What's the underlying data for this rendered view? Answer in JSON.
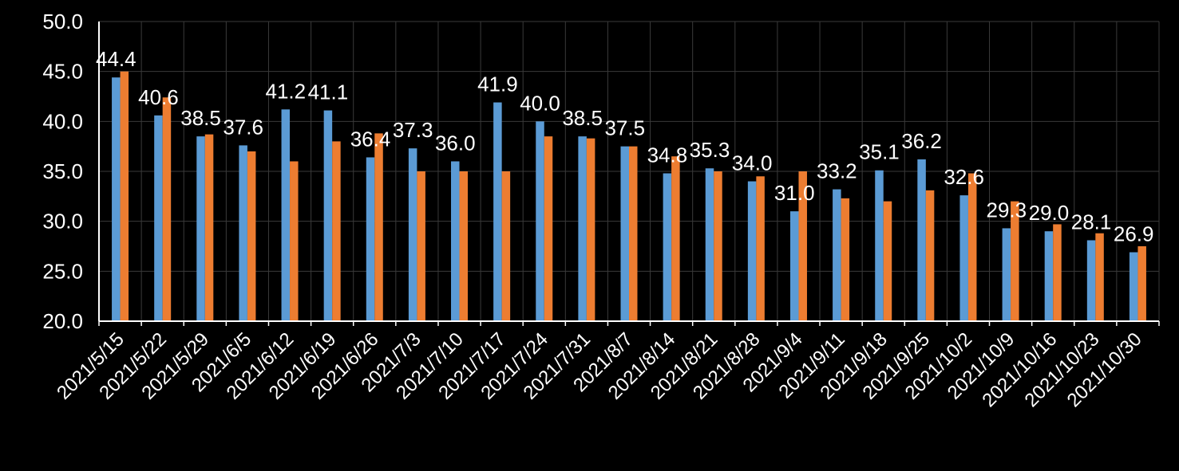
{
  "chart_data": {
    "type": "bar",
    "title": "",
    "xlabel": "",
    "ylabel": "",
    "ylim": [
      20,
      50
    ],
    "yticks": [
      "20.0",
      "25.0",
      "30.0",
      "35.0",
      "40.0",
      "45.0",
      "50.0"
    ],
    "grid": true,
    "categories": [
      "2021/5/15",
      "2021/5/22",
      "2021/5/29",
      "2021/6/5",
      "2021/6/12",
      "2021/6/19",
      "2021/6/26",
      "2021/7/3",
      "2021/7/10",
      "2021/7/17",
      "2021/7/24",
      "2021/7/31",
      "2021/8/7",
      "2021/8/14",
      "2021/8/21",
      "2021/8/28",
      "2021/9/4",
      "2021/9/11",
      "2021/9/18",
      "2021/9/25",
      "2021/10/2",
      "2021/10/9",
      "2021/10/16",
      "2021/10/23",
      "2021/10/30"
    ],
    "series": [
      {
        "color": "#5b9bd5",
        "values": [
          44.4,
          40.6,
          38.5,
          37.6,
          41.2,
          41.1,
          36.4,
          37.3,
          36.0,
          41.9,
          40.0,
          38.5,
          37.5,
          34.8,
          35.3,
          34.0,
          31.0,
          33.2,
          35.1,
          36.2,
          32.6,
          29.3,
          29.0,
          28.1,
          26.9
        ],
        "labels": [
          "44.4",
          "40.6",
          "38.5",
          "37.6",
          "41.2",
          "41.1",
          "36.4",
          "37.3",
          "36.0",
          "41.9",
          "40.0",
          "38.5",
          "37.5",
          "34.8",
          "35.3",
          "34.0",
          "31.0",
          "33.2",
          "35.1",
          "36.2",
          "32.6",
          "29.3",
          "29.0",
          "28.1",
          "26.9"
        ]
      },
      {
        "color": "#ed7d31",
        "values": [
          45.0,
          42.4,
          38.7,
          37.0,
          36.0,
          38.0,
          38.8,
          35.0,
          35.0,
          35.0,
          38.5,
          38.3,
          37.5,
          36.5,
          35.0,
          34.5,
          35.0,
          32.3,
          32.0,
          33.1,
          34.8,
          32.0,
          29.7,
          28.8,
          27.5
        ]
      }
    ]
  }
}
